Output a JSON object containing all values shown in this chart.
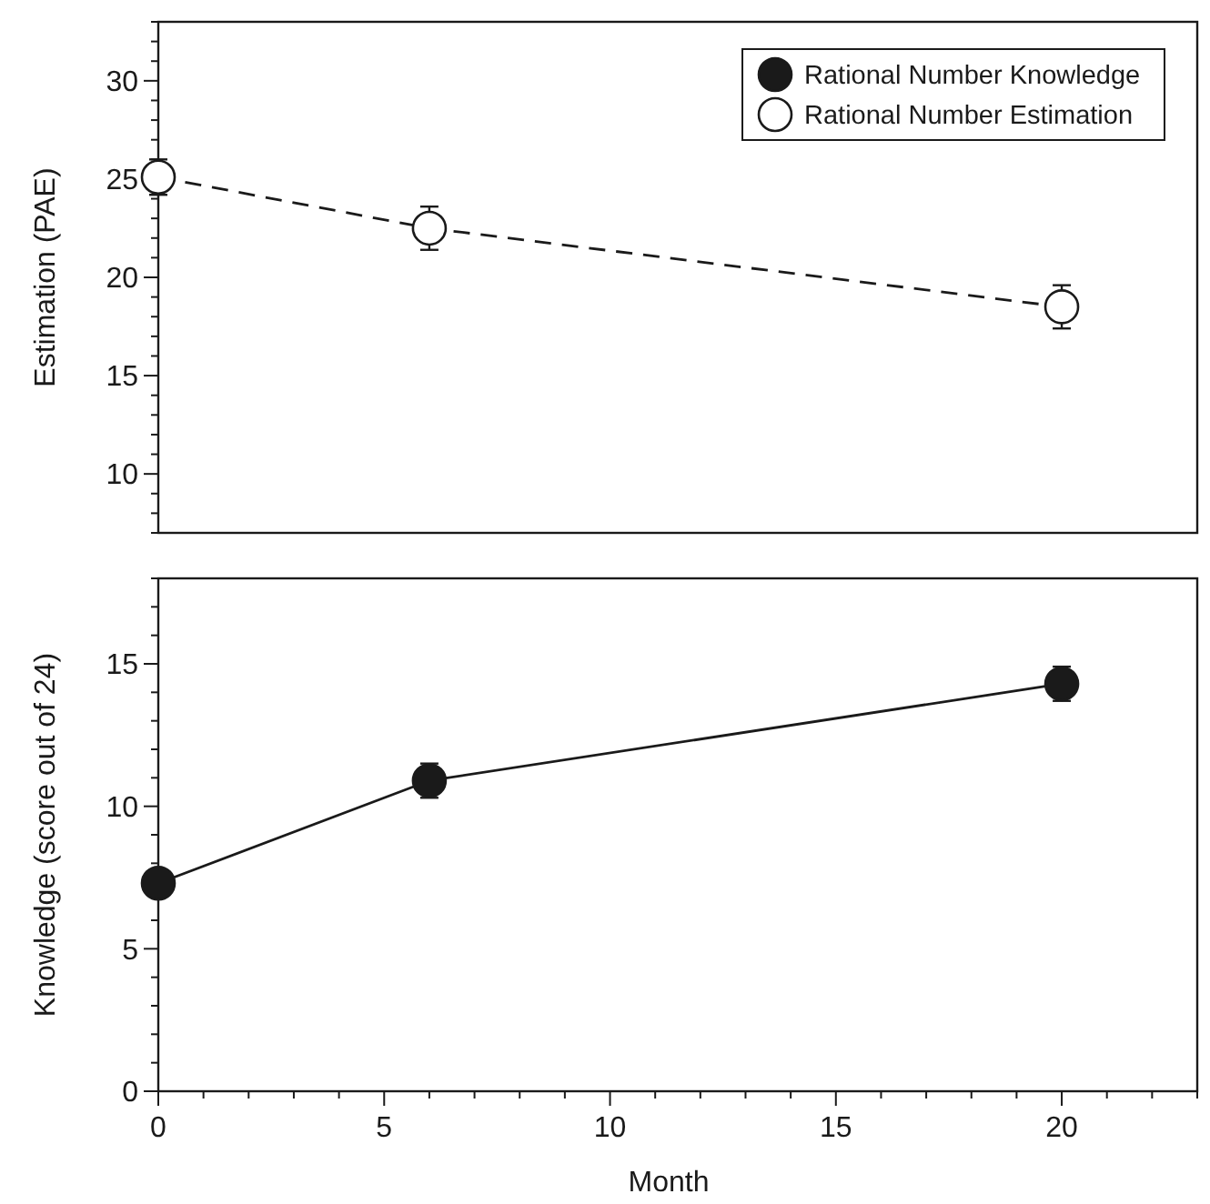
{
  "chart_data": [
    {
      "type": "line",
      "ylabel": "Estimation (PAE)",
      "xlim": [
        0,
        23
      ],
      "ylim": [
        7,
        33
      ],
      "yticks": [
        {
          "value": 7,
          "label": null
        },
        {
          "value": 8,
          "label": null
        },
        {
          "value": 9,
          "label": null
        },
        10,
        {
          "value": 11,
          "label": null
        },
        {
          "value": 12,
          "label": null
        },
        {
          "value": 13,
          "label": null
        },
        {
          "value": 14,
          "label": null
        },
        15,
        {
          "value": 16,
          "label": null
        },
        {
          "value": 17,
          "label": null
        },
        {
          "value": 18,
          "label": null
        },
        {
          "value": 19,
          "label": null
        },
        20,
        {
          "value": 21,
          "label": null
        },
        {
          "value": 22,
          "label": null
        },
        {
          "value": 23,
          "label": null
        },
        {
          "value": 24,
          "label": null
        },
        25,
        {
          "value": 26,
          "label": null
        },
        {
          "value": 27,
          "label": null
        },
        {
          "value": 28,
          "label": null
        },
        {
          "value": 29,
          "label": null
        },
        30,
        {
          "value": 31,
          "label": null
        },
        {
          "value": 32,
          "label": null
        },
        {
          "value": 33,
          "label": null
        }
      ],
      "tick_labels": "y",
      "legend": "top right",
      "marker": "circle",
      "grid": false,
      "series": [
        {
          "name": "Rational Number Estimation",
          "color": "#ffffff",
          "line_style": "dashed",
          "x": [
            0,
            6,
            20
          ],
          "values": [
            25.1,
            22.5,
            18.5
          ],
          "errors": [
            0.9,
            1.1,
            1.1
          ]
        }
      ]
    },
    {
      "type": "line",
      "xlabel": "Month",
      "ylabel": "Knowledge (score out of 24)",
      "xlim": [
        0,
        23
      ],
      "ylim": [
        0,
        18
      ],
      "xticks": [
        0,
        {
          "value": 1,
          "label": null
        },
        {
          "value": 2,
          "label": null
        },
        {
          "value": 3,
          "label": null
        },
        {
          "value": 4,
          "label": null
        },
        5,
        {
          "value": 6,
          "label": null
        },
        {
          "value": 7,
          "label": null
        },
        {
          "value": 8,
          "label": null
        },
        {
          "value": 9,
          "label": null
        },
        10,
        {
          "value": 11,
          "label": null
        },
        {
          "value": 12,
          "label": null
        },
        {
          "value": 13,
          "label": null
        },
        {
          "value": 14,
          "label": null
        },
        15,
        {
          "value": 16,
          "label": null
        },
        {
          "value": 17,
          "label": null
        },
        {
          "value": 18,
          "label": null
        },
        {
          "value": 19,
          "label": null
        },
        20,
        {
          "value": 21,
          "label": null
        },
        {
          "value": 22,
          "label": null
        },
        {
          "value": 23,
          "label": null
        }
      ],
      "yticks": [
        0,
        {
          "value": 1,
          "label": null
        },
        {
          "value": 2,
          "label": null
        },
        {
          "value": 3,
          "label": null
        },
        {
          "value": 4,
          "label": null
        },
        5,
        {
          "value": 6,
          "label": null
        },
        {
          "value": 7,
          "label": null
        },
        {
          "value": 8,
          "label": null
        },
        {
          "value": 9,
          "label": null
        },
        10,
        {
          "value": 11,
          "label": null
        },
        {
          "value": 12,
          "label": null
        },
        {
          "value": 13,
          "label": null
        },
        {
          "value": 14,
          "label": null
        },
        15,
        {
          "value": 16,
          "label": null
        },
        {
          "value": 17,
          "label": null
        },
        {
          "value": 18,
          "label": null
        }
      ],
      "marker": "circle",
      "grid": false,
      "series": [
        {
          "name": "Rational Number Knowledge",
          "color": "#1a1a1a",
          "line_style": "solid",
          "x": [
            0,
            6,
            20
          ],
          "values": [
            7.3,
            10.9,
            14.3
          ],
          "errors": [
            null,
            0.6,
            0.6
          ]
        }
      ]
    }
  ]
}
